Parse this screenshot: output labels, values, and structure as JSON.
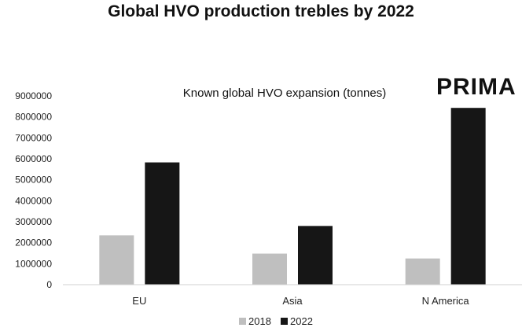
{
  "headline": "Global HVO production trebles by 2022",
  "logo_text": "PRIMA",
  "colors": {
    "series_2018": "#bfbfbf",
    "series_2022": "#161616",
    "axis": "#d0d0d0"
  },
  "chart_data": {
    "type": "bar",
    "title": "Known global HVO expansion (tonnes)",
    "categories": [
      "EU",
      "Asia",
      "N America"
    ],
    "series": [
      {
        "name": "2018",
        "values": [
          2350000,
          1480000,
          1250000
        ]
      },
      {
        "name": "2022",
        "values": [
          5830000,
          2800000,
          8430000
        ]
      }
    ],
    "ylim": [
      0,
      9000000
    ],
    "yticks": [
      0,
      1000000,
      2000000,
      3000000,
      4000000,
      5000000,
      6000000,
      7000000,
      8000000,
      9000000
    ],
    "legend_position": "bottom",
    "grid": false
  }
}
